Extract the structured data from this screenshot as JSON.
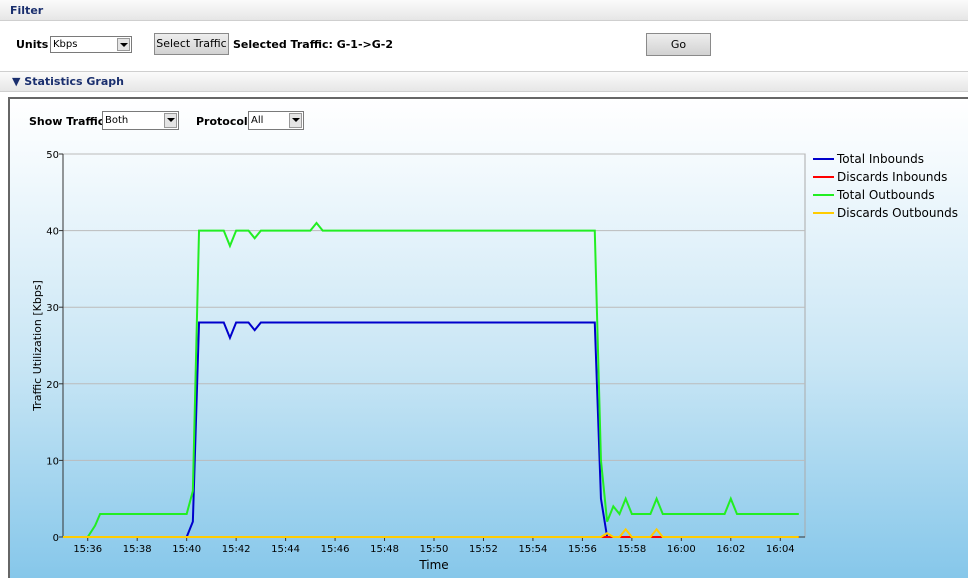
{
  "filter": {
    "title": "Filter",
    "units_label": "Units",
    "units_value": "Kbps",
    "select_button": "Select Traffic",
    "selected_traffic": "Selected Traffic: G-1->G-2",
    "go_button": "Go"
  },
  "statistics": {
    "title": "Statistics Graph",
    "show_traffic_label": "Show Traffic",
    "show_traffic_value": "Both",
    "protocol_label": "Protocol",
    "protocol_value": "All"
  },
  "chart_data": {
    "type": "line",
    "xlabel": "Time",
    "ylabel": "Traffic Utilization [Kbps]",
    "xlim": [
      935,
      965
    ],
    "ylim": [
      0,
      50
    ],
    "yticks": [
      0,
      10,
      20,
      30,
      40,
      50
    ],
    "xticks": [
      {
        "value": 936,
        "label": "15:36"
      },
      {
        "value": 938,
        "label": "15:38"
      },
      {
        "value": 940,
        "label": "15:40"
      },
      {
        "value": 942,
        "label": "15:42"
      },
      {
        "value": 944,
        "label": "15:44"
      },
      {
        "value": 946,
        "label": "15:46"
      },
      {
        "value": 948,
        "label": "15:48"
      },
      {
        "value": 950,
        "label": "15:50"
      },
      {
        "value": 952,
        "label": "15:52"
      },
      {
        "value": 954,
        "label": "15:54"
      },
      {
        "value": 956,
        "label": "15:56"
      },
      {
        "value": 958,
        "label": "15:58"
      },
      {
        "value": 960,
        "label": "16:00"
      },
      {
        "value": 962,
        "label": "16:02"
      },
      {
        "value": 964,
        "label": "16:04"
      }
    ],
    "grid": true,
    "legend": "right",
    "series": [
      {
        "name": "Total Inbounds",
        "color": "#0000cc",
        "x": [
          935,
          940,
          940.25,
          940.5,
          941.5,
          941.75,
          942,
          942.5,
          942.75,
          943,
          956.5,
          956.75,
          957,
          964.75
        ],
        "values": [
          0,
          0,
          2,
          28,
          28,
          26,
          28,
          28,
          27,
          28,
          28,
          5,
          0,
          0
        ]
      },
      {
        "name": "Discards Inbounds",
        "color": "#ff0000",
        "x": [
          935,
          964.75
        ],
        "values": [
          0,
          0
        ]
      },
      {
        "name": "Total Outbounds",
        "color": "#22ee22",
        "x": [
          935,
          936,
          936.3,
          936.5,
          940,
          940.25,
          940.5,
          941.5,
          941.75,
          942,
          942.5,
          942.75,
          943,
          945,
          945.25,
          945.5,
          956.5,
          956.75,
          957,
          957.25,
          957.5,
          957.75,
          958,
          958.75,
          959,
          959.25,
          961.75,
          962,
          962.25,
          964.75
        ],
        "values": [
          0,
          0,
          1.5,
          3,
          3,
          6,
          40,
          40,
          38,
          40,
          40,
          39,
          40,
          40,
          41,
          40,
          40,
          10,
          2,
          4,
          3,
          5,
          3,
          3,
          5,
          3,
          3,
          5,
          3,
          3
        ]
      },
      {
        "name": "Discards Outbounds",
        "color": "#ffcc00",
        "x": [
          935,
          956.75,
          957,
          957.25,
          957.5,
          957.75,
          958,
          958.75,
          959,
          959.25,
          964.75
        ],
        "values": [
          0,
          0,
          0.5,
          0,
          0,
          1,
          0,
          0,
          1,
          0,
          0
        ]
      }
    ]
  }
}
